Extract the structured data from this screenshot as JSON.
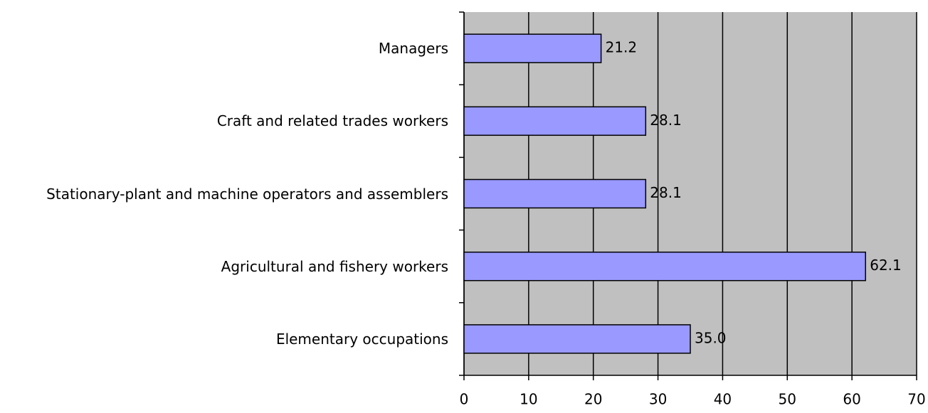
{
  "chart_data": {
    "type": "bar",
    "orientation": "horizontal",
    "categories": [
      "Managers",
      "Craft and related trades workers",
      "Stationary-plant and machine operators and assemblers",
      "Agricultural and fishery workers",
      "Elementary occupations"
    ],
    "values": [
      21.2,
      28.1,
      28.1,
      62.1,
      35.0
    ],
    "value_labels": [
      "21.2",
      "28.1",
      "28.1",
      "62.1",
      "35.0"
    ],
    "color": "#9999ff",
    "xlim": [
      0,
      70
    ],
    "xticks": [
      0,
      10,
      20,
      30,
      40,
      50,
      60,
      70
    ],
    "grid": true
  }
}
